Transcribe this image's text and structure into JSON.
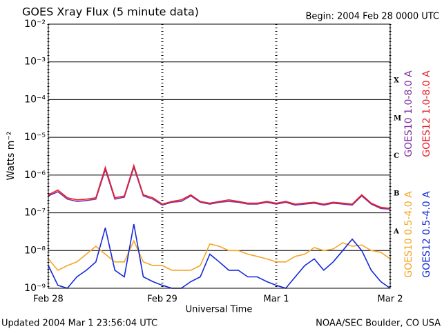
{
  "chart_data": {
    "type": "line",
    "title": "GOES Xray Flux (5 minute data)",
    "subtitle": "Begin:  2004 Feb 28 0000 UTC",
    "ylabel": "Watts m⁻²",
    "xlabel": "Universal Time",
    "footer_left": "Updated 2004 Mar  1 23:56:04 UTC",
    "footer_right": "NOAA/SEC Boulder, CO USA",
    "class_labels": [
      "A",
      "B",
      "C",
      "M",
      "X"
    ],
    "log_y": true,
    "grid": true,
    "xlim": [
      0,
      72
    ],
    "xticks": [
      {
        "value": 0,
        "label": "Feb 28"
      },
      {
        "value": 24,
        "label": "Feb 29"
      },
      {
        "value": 48,
        "label": "Mar 1"
      },
      {
        "value": 72,
        "label": "Mar 2"
      }
    ],
    "ylim": [
      1e-09,
      0.01
    ],
    "yticks": [
      {
        "value": 1e-09,
        "label": "10⁻⁹"
      },
      {
        "value": 1e-08,
        "label": "10⁻⁸"
      },
      {
        "value": 1e-07,
        "label": "10⁻⁷"
      },
      {
        "value": 1e-06,
        "label": "10⁻⁶"
      },
      {
        "value": 1e-05,
        "label": "10⁻⁵"
      },
      {
        "value": 0.0001,
        "label": "10⁻⁴"
      },
      {
        "value": 0.001,
        "label": "10⁻³"
      },
      {
        "value": 0.01,
        "label": "10⁻²"
      }
    ],
    "x": [
      0,
      2,
      4,
      6,
      8,
      10,
      12,
      14,
      16,
      18,
      20,
      22,
      24,
      26,
      28,
      30,
      32,
      34,
      36,
      38,
      40,
      42,
      44,
      46,
      48,
      50,
      52,
      54,
      56,
      58,
      60,
      62,
      64,
      66,
      68,
      70,
      72
    ],
    "series": [
      {
        "name": "GOES10 1.0-8.0 A",
        "color": "#7f2fa0",
        "values": [
          2.8e-07,
          3.6e-07,
          2.3e-07,
          2e-07,
          2.1e-07,
          2.3e-07,
          1.4e-06,
          2.3e-07,
          2.6e-07,
          1.6e-06,
          2.8e-07,
          2.3e-07,
          1.6e-07,
          1.9e-07,
          2e-07,
          2.8e-07,
          1.9e-07,
          1.7e-07,
          1.9e-07,
          2e-07,
          1.9e-07,
          1.7e-07,
          1.7e-07,
          1.9e-07,
          1.7e-07,
          1.9e-07,
          1.6e-07,
          1.7e-07,
          1.8e-07,
          1.6e-07,
          1.8e-07,
          1.7e-07,
          1.6e-07,
          2.8e-07,
          1.7e-07,
          1.3e-07,
          1.25e-07
        ]
      },
      {
        "name": "GOES12 1.0-8.0 A",
        "color": "#e8202a",
        "values": [
          3e-07,
          4e-07,
          2.5e-07,
          2.2e-07,
          2.3e-07,
          2.5e-07,
          1.6e-06,
          2.5e-07,
          2.8e-07,
          1.8e-06,
          3e-07,
          2.5e-07,
          1.7e-07,
          2e-07,
          2.2e-07,
          3e-07,
          2e-07,
          1.8e-07,
          2e-07,
          2.2e-07,
          2e-07,
          1.8e-07,
          1.8e-07,
          2e-07,
          1.8e-07,
          2e-07,
          1.7e-07,
          1.8e-07,
          1.9e-07,
          1.7e-07,
          1.9e-07,
          1.8e-07,
          1.7e-07,
          3e-07,
          1.8e-07,
          1.4e-07,
          1.3e-07
        ]
      },
      {
        "name": "GOES10 0.5-4.0 A",
        "color": "#f5a623",
        "values": [
          6e-09,
          3e-09,
          4e-09,
          5e-09,
          8e-09,
          1.3e-08,
          8e-09,
          5e-09,
          5e-09,
          1.8e-08,
          5e-09,
          4e-09,
          4e-09,
          3e-09,
          3e-09,
          3e-09,
          4e-09,
          1.5e-08,
          1.3e-08,
          1e-08,
          1e-08,
          8e-09,
          7e-09,
          6e-09,
          5e-09,
          5e-09,
          7e-09,
          8e-09,
          1.2e-08,
          1e-08,
          1.1e-08,
          1.6e-08,
          1.3e-08,
          1.4e-08,
          1e-08,
          9e-09,
          6e-09
        ]
      },
      {
        "name": "GOES12 0.5-4.0 A",
        "color": "#1428d8",
        "values": [
          4e-09,
          1.2e-09,
          1e-09,
          2e-09,
          3e-09,
          5e-09,
          4e-08,
          3e-09,
          2e-09,
          5e-08,
          2e-09,
          1.5e-09,
          1.2e-09,
          1e-09,
          1e-09,
          1.5e-09,
          2e-09,
          8e-09,
          5e-09,
          3e-09,
          3e-09,
          2e-09,
          2e-09,
          1.5e-09,
          1.2e-09,
          1e-09,
          2e-09,
          4e-09,
          6e-09,
          3e-09,
          5e-09,
          1e-08,
          2e-08,
          1e-08,
          3e-09,
          1.5e-09,
          1e-09
        ]
      }
    ]
  }
}
